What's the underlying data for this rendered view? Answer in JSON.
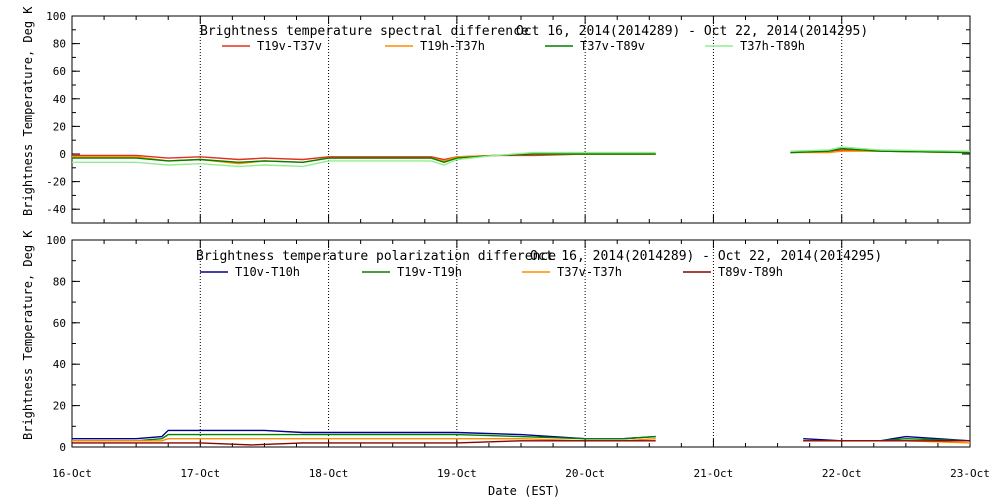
{
  "chart_data": [
    {
      "type": "line",
      "title": "Brightness temperature spectral difference",
      "date_range": "Oct 16, 2014(2014289) - Oct 22, 2014(2014295)",
      "ylabel": "Brightness Temperature, Deg K",
      "ylim": [
        -50,
        100
      ],
      "yticks": [
        -40,
        -20,
        0,
        20,
        40,
        60,
        80,
        100
      ],
      "xlim": [
        "2014-10-16",
        "2014-10-23"
      ],
      "grid": "dotted vertical at each day",
      "legend_placement": "top",
      "series": [
        {
          "name": "T19v-T37v",
          "color": "#e0301e",
          "points": [
            [
              0,
              -1
            ],
            [
              0.5,
              -1
            ],
            [
              0.75,
              -3
            ],
            [
              1,
              -2
            ],
            [
              1.3,
              -4
            ],
            [
              1.5,
              -3
            ],
            [
              1.8,
              -4
            ],
            [
              2,
              -2
            ],
            [
              2.5,
              -2
            ],
            [
              2.8,
              -2
            ],
            [
              2.9,
              -4
            ],
            [
              3,
              -2
            ],
            [
              3.3,
              -1
            ],
            [
              3.6,
              -1
            ],
            [
              4,
              0
            ],
            [
              4.5,
              0
            ],
            [
              4.55,
              0
            ]
          ]
        },
        {
          "name": "T19h-T37h",
          "color": "#ff8c00",
          "points": [
            [
              0,
              -2
            ],
            [
              0.5,
              -2
            ],
            [
              0.75,
              -5
            ],
            [
              1,
              -4
            ],
            [
              1.3,
              -7
            ],
            [
              1.5,
              -5
            ],
            [
              1.8,
              -6
            ],
            [
              2,
              -3
            ],
            [
              2.5,
              -3
            ],
            [
              2.8,
              -3
            ],
            [
              2.9,
              -5
            ],
            [
              3,
              -2
            ],
            [
              3.3,
              -1
            ],
            [
              3.6,
              0
            ],
            [
              4,
              0
            ],
            [
              4.5,
              0
            ],
            [
              4.55,
              0
            ]
          ]
        },
        {
          "name": "T37v-T89v",
          "color": "#008000",
          "points": [
            [
              0,
              -3
            ],
            [
              0.5,
              -3
            ],
            [
              0.75,
              -5
            ],
            [
              1,
              -4
            ],
            [
              1.3,
              -6
            ],
            [
              1.5,
              -5
            ],
            [
              1.8,
              -6
            ],
            [
              2,
              -3
            ],
            [
              2.5,
              -3
            ],
            [
              2.8,
              -3
            ],
            [
              2.9,
              -6
            ],
            [
              3,
              -3
            ],
            [
              3.3,
              -1
            ],
            [
              3.6,
              0
            ],
            [
              4,
              0
            ],
            [
              4.5,
              0
            ],
            [
              4.55,
              0
            ]
          ]
        },
        {
          "name": "T37h-T89h",
          "color": "#90ee90",
          "points": [
            [
              0,
              -6
            ],
            [
              0.5,
              -6
            ],
            [
              0.75,
              -8
            ],
            [
              1,
              -7
            ],
            [
              1.3,
              -9
            ],
            [
              1.5,
              -8
            ],
            [
              1.8,
              -9
            ],
            [
              2,
              -5
            ],
            [
              2.5,
              -5
            ],
            [
              2.8,
              -5
            ],
            [
              2.9,
              -8
            ],
            [
              3,
              -4
            ],
            [
              3.3,
              -1
            ],
            [
              3.6,
              1
            ],
            [
              4,
              1
            ],
            [
              4.5,
              1
            ],
            [
              4.55,
              1
            ]
          ]
        }
      ],
      "series_tail": [
        [
          [
            5.6,
            1
          ],
          [
            5.9,
            2
          ],
          [
            6,
            3
          ],
          [
            6.3,
            2
          ],
          [
            7,
            1
          ]
        ],
        [
          [
            5.6,
            1
          ],
          [
            5.9,
            1
          ],
          [
            6,
            2
          ],
          [
            6.3,
            2
          ],
          [
            7,
            1
          ]
        ],
        [
          [
            5.6,
            1
          ],
          [
            5.9,
            2
          ],
          [
            6,
            4
          ],
          [
            6.3,
            2
          ],
          [
            7,
            1
          ]
        ],
        [
          [
            5.6,
            2
          ],
          [
            5.9,
            3
          ],
          [
            6,
            5
          ],
          [
            6.3,
            3
          ],
          [
            7,
            2
          ]
        ]
      ]
    },
    {
      "type": "line",
      "title": "Brightness temperature polarization difference",
      "date_range": "Oct 16, 2014(2014289) - Oct 22, 2014(2014295)",
      "ylabel": "Brightness Temperature, Deg K",
      "xlabel": "Date (EST)",
      "ylim": [
        0,
        100
      ],
      "yticks": [
        0,
        20,
        40,
        60,
        80,
        100
      ],
      "xlim": [
        "2014-10-16",
        "2014-10-23"
      ],
      "x_tick_labels": [
        "16-Oct",
        "17-Oct",
        "18-Oct",
        "19-Oct",
        "20-Oct",
        "21-Oct",
        "22-Oct",
        "23-Oct"
      ],
      "grid": "dotted vertical at each day",
      "legend_placement": "top",
      "series": [
        {
          "name": "T10v-T10h",
          "color": "#00008b",
          "points": [
            [
              0,
              4
            ],
            [
              0.5,
              4
            ],
            [
              0.7,
              5
            ],
            [
              0.75,
              8
            ],
            [
              1,
              8
            ],
            [
              1.5,
              8
            ],
            [
              1.8,
              7
            ],
            [
              2,
              7
            ],
            [
              2.5,
              7
            ],
            [
              3,
              7
            ],
            [
              3.5,
              6
            ],
            [
              4,
              4
            ],
            [
              4.3,
              4
            ],
            [
              4.55,
              5
            ]
          ]
        },
        {
          "name": "T19v-T19h",
          "color": "#008000",
          "points": [
            [
              0,
              3
            ],
            [
              0.5,
              3
            ],
            [
              0.7,
              4
            ],
            [
              0.75,
              6
            ],
            [
              1,
              6
            ],
            [
              1.5,
              6
            ],
            [
              1.8,
              6
            ],
            [
              2,
              6
            ],
            [
              2.5,
              6
            ],
            [
              3,
              6
            ],
            [
              3.5,
              5
            ],
            [
              4,
              4
            ],
            [
              4.3,
              4
            ],
            [
              4.55,
              5
            ]
          ]
        },
        {
          "name": "T37v-T37h",
          "color": "#ff8c00",
          "points": [
            [
              0,
              3
            ],
            [
              0.5,
              3
            ],
            [
              0.7,
              3
            ],
            [
              0.75,
              4
            ],
            [
              1,
              4
            ],
            [
              1.5,
              4
            ],
            [
              1.8,
              4
            ],
            [
              2,
              4
            ],
            [
              2.5,
              4
            ],
            [
              3,
              4
            ],
            [
              3.5,
              4
            ],
            [
              4,
              3
            ],
            [
              4.3,
              3
            ],
            [
              4.55,
              4
            ]
          ]
        },
        {
          "name": "T89v-T89h",
          "color": "#8b0000",
          "points": [
            [
              0,
              2
            ],
            [
              0.5,
              2
            ],
            [
              0.7,
              2
            ],
            [
              0.75,
              2
            ],
            [
              1,
              2
            ],
            [
              1.4,
              1
            ],
            [
              1.8,
              2
            ],
            [
              2,
              2
            ],
            [
              2.5,
              2
            ],
            [
              3,
              2
            ],
            [
              3.5,
              3
            ],
            [
              4,
              3
            ],
            [
              4.3,
              3
            ],
            [
              4.55,
              3
            ]
          ]
        }
      ],
      "series_tail": [
        [
          [
            5.7,
            4
          ],
          [
            6,
            3
          ],
          [
            6.3,
            3
          ],
          [
            6.5,
            5
          ],
          [
            7,
            3
          ]
        ],
        [
          [
            5.7,
            3
          ],
          [
            6,
            3
          ],
          [
            6.3,
            3
          ],
          [
            6.5,
            4
          ],
          [
            7,
            3
          ]
        ],
        [
          [
            5.7,
            3
          ],
          [
            6,
            3
          ],
          [
            6.3,
            3
          ],
          [
            6.5,
            3
          ],
          [
            7,
            2
          ]
        ],
        [
          [
            5.7,
            3
          ],
          [
            6,
            3
          ],
          [
            6.3,
            3
          ],
          [
            6.5,
            3
          ],
          [
            7,
            3
          ]
        ]
      ]
    }
  ]
}
